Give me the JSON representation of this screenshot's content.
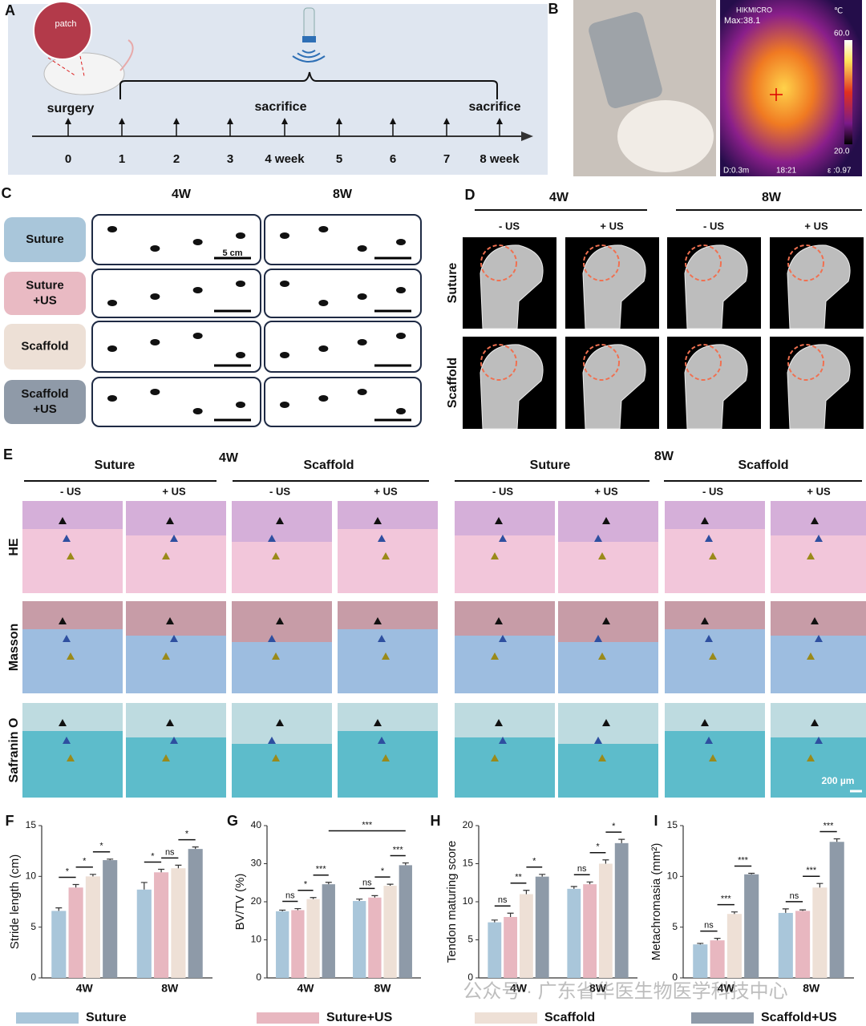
{
  "panels": {
    "A": {
      "letter": "A",
      "inset": "patch",
      "events": [
        "surgery",
        "sacrifice",
        "sacrifice"
      ],
      "timeline": [
        "0",
        "1",
        "2",
        "3",
        "4 week",
        "5",
        "6",
        "7",
        "8 week"
      ]
    },
    "B": {
      "letter": "B",
      "brand": "HIKMICRO",
      "max": "Max:38.1",
      "unit": "℃",
      "scale_max": "60.0",
      "scale_min": "20.0",
      "distance": "D:0.3m",
      "time": "18:21",
      "emissivity": "ε :0.97"
    },
    "C": {
      "letter": "C",
      "columns": [
        "4W",
        "8W"
      ],
      "rows": [
        [
          "Suture"
        ],
        [
          "Suture",
          "+US"
        ],
        [
          "Scaffold"
        ],
        [
          "Scaffold",
          "+US"
        ]
      ],
      "scale_bar": "5 cm"
    },
    "D": {
      "letter": "D",
      "columns": [
        "4W",
        "8W"
      ],
      "subcolumns": [
        "- US",
        "+ US",
        "- US",
        "+ US"
      ],
      "rows": [
        "Suture",
        "Scaffold"
      ]
    },
    "E": {
      "letter": "E",
      "timepoints": [
        "4W",
        "8W"
      ],
      "groups": [
        "Suture",
        "Scaffold",
        "Suture",
        "Scaffold"
      ],
      "subcolumns": [
        "- US",
        "+ US",
        "- US",
        "+ US",
        "- US",
        "+ US",
        "- US",
        "+ US"
      ],
      "rows": [
        "HE",
        "Masson",
        "Safranin O"
      ],
      "scale_bar": "200 µm"
    }
  },
  "chart_data": [
    {
      "type": "bar",
      "panel": "F",
      "ylabel": "Stride length (cm)",
      "categories": [
        "4W",
        "8W"
      ],
      "ylim": [
        0,
        15
      ],
      "yticks": [
        0,
        5,
        10,
        15
      ],
      "series": [
        {
          "name": "Suture",
          "color": "#a9c6da",
          "values": [
            6.6,
            8.7
          ],
          "errors": [
            0.3,
            0.7
          ]
        },
        {
          "name": "Suture+US",
          "color": "#e8b7c0",
          "values": [
            8.9,
            10.4
          ],
          "errors": [
            0.3,
            0.3
          ]
        },
        {
          "name": "Scaffold",
          "color": "#eee0d6",
          "values": [
            10.0,
            10.8
          ],
          "errors": [
            0.2,
            0.3
          ]
        },
        {
          "name": "Scaffold+US",
          "color": "#8e9aa8",
          "values": [
            11.6,
            12.7
          ],
          "errors": [
            0.1,
            0.2
          ]
        }
      ],
      "significance": [
        [
          "*",
          "*",
          "*"
        ],
        [
          "*",
          "ns",
          "*"
        ]
      ]
    },
    {
      "type": "bar",
      "panel": "G",
      "ylabel": "BV/TV (%)",
      "categories": [
        "4W",
        "8W"
      ],
      "ylim": [
        0,
        40
      ],
      "yticks": [
        0,
        10,
        20,
        30,
        40
      ],
      "series": [
        {
          "name": "Suture",
          "color": "#a9c6da",
          "values": [
            17.5,
            20.2
          ],
          "errors": [
            0.3,
            0.5
          ]
        },
        {
          "name": "Suture+US",
          "color": "#e8b7c0",
          "values": [
            17.8,
            21.1
          ],
          "errors": [
            0.4,
            0.5
          ]
        },
        {
          "name": "Scaffold",
          "color": "#eee0d6",
          "values": [
            20.7,
            24.2
          ],
          "errors": [
            0.4,
            0.4
          ]
        },
        {
          "name": "Scaffold+US",
          "color": "#8e9aa8",
          "values": [
            24.6,
            29.6
          ],
          "errors": [
            0.5,
            0.6
          ]
        }
      ],
      "significance": [
        [
          "ns",
          "*",
          "***"
        ],
        [
          "ns",
          "*",
          "***"
        ]
      ],
      "overall_significance": "***"
    },
    {
      "type": "bar",
      "panel": "H",
      "ylabel": "Tendon maturing score",
      "categories": [
        "4W",
        "8W"
      ],
      "ylim": [
        0,
        20
      ],
      "yticks": [
        0,
        5,
        10,
        15,
        20
      ],
      "series": [
        {
          "name": "Suture",
          "color": "#a9c6da",
          "values": [
            7.3,
            11.7
          ],
          "errors": [
            0.3,
            0.3
          ]
        },
        {
          "name": "Suture+US",
          "color": "#e8b7c0",
          "values": [
            8.0,
            12.3
          ],
          "errors": [
            0.5,
            0.3
          ]
        },
        {
          "name": "Scaffold",
          "color": "#eee0d6",
          "values": [
            11.0,
            15.0
          ],
          "errors": [
            0.5,
            0.5
          ]
        },
        {
          "name": "Scaffold+US",
          "color": "#8e9aa8",
          "values": [
            13.3,
            17.7
          ],
          "errors": [
            0.3,
            0.5
          ]
        }
      ],
      "significance": [
        [
          "ns",
          "**",
          "*"
        ],
        [
          "ns",
          "*",
          "*"
        ]
      ]
    },
    {
      "type": "bar",
      "panel": "I",
      "ylabel": "Metachromasia (mm²)",
      "categories": [
        "4W",
        "8W"
      ],
      "ylim": [
        0,
        15
      ],
      "yticks": [
        0,
        5,
        10,
        15
      ],
      "series": [
        {
          "name": "Suture",
          "color": "#a9c6da",
          "values": [
            3.3,
            6.4
          ],
          "errors": [
            0.1,
            0.4
          ]
        },
        {
          "name": "Suture+US",
          "color": "#e8b7c0",
          "values": [
            3.7,
            6.6
          ],
          "errors": [
            0.2,
            0.1
          ]
        },
        {
          "name": "Scaffold",
          "color": "#eee0d6",
          "values": [
            6.3,
            8.9
          ],
          "errors": [
            0.2,
            0.4
          ]
        },
        {
          "name": "Scaffold+US",
          "color": "#8e9aa8",
          "values": [
            10.2,
            13.4
          ],
          "errors": [
            0.1,
            0.3
          ]
        }
      ],
      "significance": [
        [
          "ns",
          "***",
          "***"
        ],
        [
          "ns",
          "***",
          "***"
        ]
      ]
    }
  ],
  "watermark": "公众号 · 广东省华医生物医学科技中心"
}
